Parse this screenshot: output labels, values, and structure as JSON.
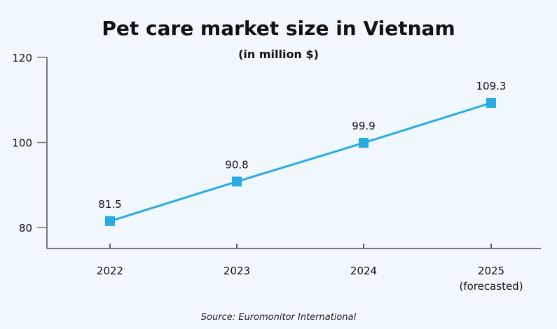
{
  "chart_data": {
    "type": "line",
    "title": "Pet care market size in Vietnam",
    "subtitle": "(in million $)",
    "categories": [
      "2022",
      "2023",
      "2024",
      "2025"
    ],
    "category_sublabels": [
      "",
      "",
      "",
      "(forecasted)"
    ],
    "values": [
      81.5,
      90.8,
      99.9,
      109.3
    ],
    "data_labels": [
      "81.5",
      "90.8",
      "99.9",
      "109.3"
    ],
    "yticks": [
      80,
      100,
      120
    ],
    "ylim": [
      75,
      120
    ],
    "grid": false,
    "marker": "square",
    "line_color": "#29abe2",
    "axis_color": "#777777",
    "source": "Source: Euromonitor International"
  }
}
